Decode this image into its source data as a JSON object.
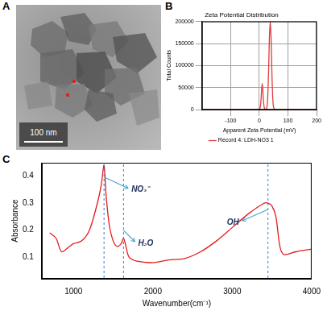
{
  "image_panel": {
    "panel": "A",
    "scale_bar": "100 nm"
  },
  "chart_data": [
    {
      "type": "line",
      "panel": "B",
      "title": "Zeta Potential Distribution",
      "xlabel": "Apparent Zeta Potential (mV)",
      "ylabel": "Total Counts",
      "x": [
        -200,
        -10,
        0,
        5,
        10,
        15,
        20,
        26,
        29,
        32,
        35,
        38,
        41,
        44,
        47,
        50,
        56,
        200
      ],
      "series": [
        {
          "name": "Record 4: LDH-NO3 1",
          "color": "#e03a3a",
          "values": [
            0,
            0,
            0,
            15000,
            60000,
            15000,
            0,
            5000,
            25000,
            80000,
            160000,
            200000,
            160000,
            80000,
            25000,
            5000,
            0,
            0
          ]
        }
      ],
      "xlim": [
        -200,
        200
      ],
      "xticks": [
        -100,
        0,
        100,
        200
      ],
      "ylim": [
        0,
        200000
      ],
      "yticks": [
        0,
        50000,
        100000,
        150000,
        200000
      ],
      "grid": true,
      "legend": "bottom"
    },
    {
      "type": "line",
      "panel": "C",
      "xlabel": "Wavenumber(cm⁻¹)",
      "ylabel": "Absorbance",
      "x": [
        700,
        780,
        850,
        950,
        1000,
        1100,
        1200,
        1300,
        1350,
        1384,
        1410,
        1450,
        1500,
        1550,
        1600,
        1630,
        1660,
        1700,
        1800,
        2000,
        2200,
        2400,
        2600,
        2800,
        3000,
        3200,
        3400,
        3450,
        3500,
        3550,
        3600,
        3650,
        3800,
        4000
      ],
      "values": [
        0.19,
        0.17,
        0.12,
        0.14,
        0.15,
        0.16,
        0.2,
        0.3,
        0.37,
        0.44,
        0.33,
        0.22,
        0.16,
        0.14,
        0.15,
        0.17,
        0.14,
        0.1,
        0.085,
        0.08,
        0.09,
        0.095,
        0.12,
        0.16,
        0.21,
        0.26,
        0.3,
        0.3,
        0.29,
        0.25,
        0.14,
        0.11,
        0.12,
        0.13
      ],
      "color": "#e41a1c",
      "xlim": [
        600,
        4000
      ],
      "xticks": [
        1000,
        2000,
        3000,
        4000
      ],
      "ylim": [
        0.02,
        0.45
      ],
      "yticks": [
        0.1,
        0.2,
        0.3,
        0.4
      ],
      "grid": false,
      "annotations": [
        {
          "text": "NO₃⁻",
          "x": 1384
        },
        {
          "text": "H₂O",
          "x": 1630
        },
        {
          "text": "OH",
          "x": 3450
        }
      ]
    }
  ]
}
